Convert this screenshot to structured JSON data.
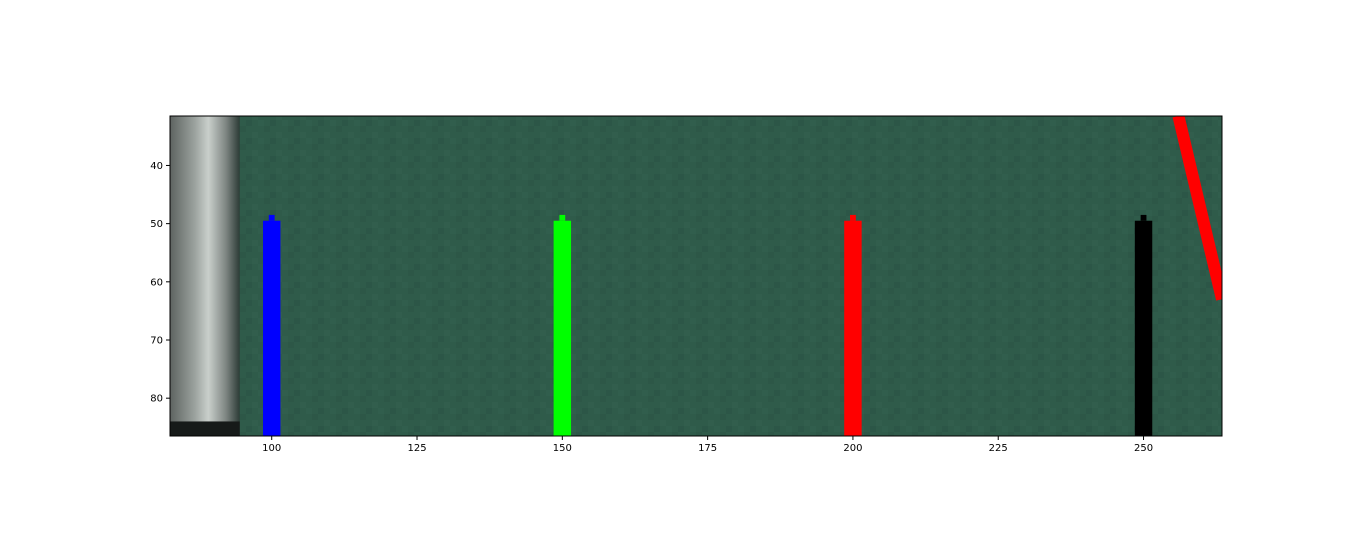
{
  "chart_data": {
    "type": "image",
    "x": {
      "lim": [
        82.5,
        263.5
      ],
      "ticks": [
        100,
        125,
        150,
        175,
        200,
        225,
        250
      ],
      "tick_labels": [
        "100",
        "125",
        "150",
        "175",
        "200",
        "225",
        "250"
      ]
    },
    "y": {
      "lim": [
        86.5,
        31.5
      ],
      "inverted": true,
      "ticks": [
        40,
        50,
        60,
        70,
        80
      ],
      "tick_labels": [
        "40",
        "50",
        "60",
        "70",
        "80"
      ]
    },
    "background": {
      "description": "green field image with a white/grey post on the left",
      "color": "#2f5b4a",
      "post_x_range": [
        82.5,
        94.5
      ],
      "post_color": "#8a8f8c"
    },
    "markers": [
      {
        "x": 100,
        "y_top": 49,
        "y_bottom": 86.5,
        "width": 3,
        "color": "#0000ff"
      },
      {
        "x": 150,
        "y_top": 49,
        "y_bottom": 86.5,
        "width": 3,
        "color": "#00ff00"
      },
      {
        "x": 200,
        "y_top": 49,
        "y_bottom": 86.5,
        "width": 3,
        "color": "#ff0000"
      },
      {
        "x": 250,
        "y_top": 49,
        "y_bottom": 86.5,
        "width": 3,
        "color": "#000000"
      }
    ],
    "line": {
      "points": [
        [
          256,
          31.5
        ],
        [
          263.5,
          63
        ]
      ],
      "color": "#ff0000"
    },
    "grid": false
  }
}
